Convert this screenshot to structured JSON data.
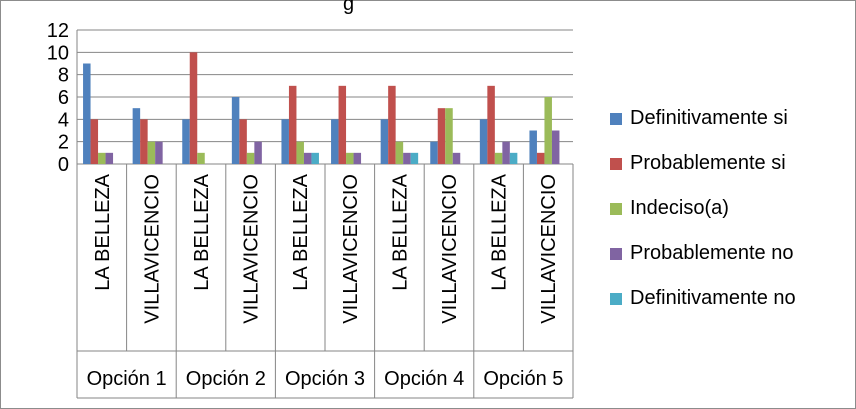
{
  "chart_data": {
    "type": "bar",
    "title_fragment": "g",
    "groups": [
      "Opción 1",
      "Opción 2",
      "Opción 3",
      "Opción 4",
      "Opción 5"
    ],
    "categories": [
      "LA BELLEZA",
      "VILLAVICENCIO",
      "LA BELLEZA",
      "VILLAVICENCIO",
      "LA BELLEZA",
      "VILLAVICENCIO",
      "LA BELLEZA",
      "VILLAVICENCIO",
      "LA BELLEZA",
      "VILLAVICENCIO"
    ],
    "series": [
      {
        "name": "Definitivamente si",
        "color": "#4F81BD",
        "values": [
          9,
          5,
          4,
          6,
          4,
          4,
          4,
          2,
          4,
          3
        ]
      },
      {
        "name": "Probablemente si",
        "color": "#C0504D",
        "values": [
          4,
          4,
          10,
          4,
          7,
          7,
          7,
          5,
          7,
          1
        ]
      },
      {
        "name": "Indeciso(a)",
        "color": "#9BBB59",
        "values": [
          1,
          2,
          1,
          1,
          2,
          1,
          2,
          5,
          1,
          6
        ]
      },
      {
        "name": "Probablemente no",
        "color": "#8064A2",
        "values": [
          1,
          2,
          0,
          2,
          1,
          1,
          1,
          1,
          2,
          3
        ]
      },
      {
        "name": "Definitivamente no",
        "color": "#4BACC6",
        "values": [
          0,
          0,
          0,
          0,
          1,
          0,
          1,
          0,
          1,
          0
        ]
      }
    ],
    "ylim": [
      0,
      12
    ],
    "yticks": [
      0,
      2,
      4,
      6,
      8,
      10,
      12
    ],
    "grid": true,
    "legend_position": "right"
  }
}
